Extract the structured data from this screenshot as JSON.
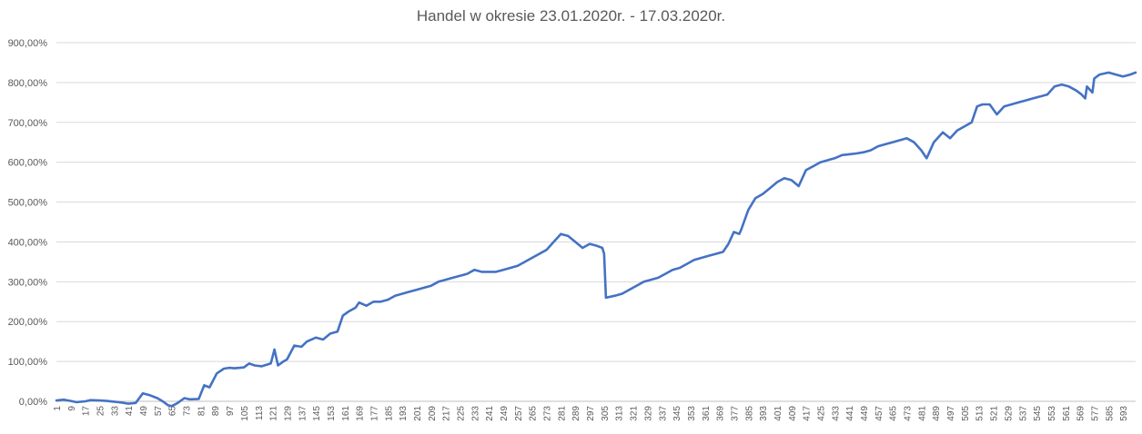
{
  "chart_data": {
    "type": "line",
    "title": "Handel w okresie 23.01.2020r. - 17.03.2020r.",
    "xlabel": "",
    "ylabel": "",
    "ylim": [
      0,
      900
    ],
    "y_ticks": [
      "0,00%",
      "100,00%",
      "200,00%",
      "300,00%",
      "400,00%",
      "500,00%",
      "600,00%",
      "700,00%",
      "800,00%",
      "900,00%"
    ],
    "y_tick_values": [
      0,
      100,
      200,
      300,
      400,
      500,
      600,
      700,
      800,
      900
    ],
    "x_range": [
      1,
      600
    ],
    "x_ticks": [
      "1",
      "9",
      "17",
      "25",
      "33",
      "41",
      "49",
      "57",
      "65",
      "73",
      "81",
      "89",
      "97",
      "105",
      "113",
      "121",
      "129",
      "137",
      "145",
      "153",
      "161",
      "169",
      "177",
      "185",
      "193",
      "201",
      "209",
      "217",
      "225",
      "233",
      "241",
      "249",
      "257",
      "265",
      "273",
      "281",
      "289",
      "297",
      "305",
      "313",
      "321",
      "329",
      "337",
      "345",
      "353",
      "361",
      "369",
      "377",
      "385",
      "393",
      "401",
      "409",
      "417",
      "425",
      "433",
      "441",
      "449",
      "457",
      "465",
      "473",
      "481",
      "489",
      "497",
      "505",
      "513",
      "521",
      "529",
      "537",
      "545",
      "553",
      "561",
      "569",
      "577",
      "585",
      "593"
    ],
    "grid": true,
    "legend": "none",
    "line_color": "#4472C4",
    "series": [
      {
        "x": [
          1,
          5,
          9,
          12,
          17,
          20,
          25,
          29,
          33,
          37,
          41,
          45,
          49,
          53,
          57,
          60,
          63,
          65,
          68,
          72,
          75,
          80,
          83,
          86,
          90,
          94,
          97,
          100,
          105,
          108,
          111,
          115,
          120,
          122,
          124,
          127,
          129,
          133,
          137,
          140,
          145,
          149,
          153,
          157,
          160,
          163,
          167,
          169,
          173,
          177,
          181,
          185,
          189,
          193,
          197,
          201,
          205,
          209,
          213,
          217,
          221,
          225,
          229,
          233,
          237,
          241,
          245,
          249,
          253,
          257,
          261,
          265,
          269,
          273,
          277,
          281,
          285,
          289,
          293,
          297,
          301,
          304,
          305,
          306,
          308,
          311,
          315,
          319,
          323,
          327,
          331,
          335,
          339,
          343,
          347,
          351,
          355,
          359,
          363,
          367,
          371,
          374,
          377,
          380,
          381,
          385,
          389,
          393,
          397,
          401,
          405,
          409,
          413,
          417,
          421,
          425,
          429,
          433,
          437,
          441,
          445,
          449,
          453,
          457,
          461,
          465,
          469,
          473,
          477,
          481,
          484,
          485,
          488,
          493,
          497,
          501,
          505,
          509,
          512,
          515,
          519,
          523,
          527,
          531,
          535,
          539,
          543,
          547,
          551,
          555,
          559,
          563,
          567,
          570,
          572,
          573,
          576,
          577,
          580,
          585,
          589,
          593,
          597,
          600
        ],
        "y": [
          2,
          4,
          1,
          -2,
          0,
          3,
          2,
          1,
          -1,
          -3,
          -6,
          -4,
          20,
          15,
          8,
          0,
          -10,
          -12,
          -5,
          8,
          5,
          6,
          40,
          35,
          70,
          82,
          84,
          83,
          85,
          95,
          90,
          88,
          95,
          130,
          90,
          100,
          105,
          140,
          137,
          150,
          160,
          155,
          170,
          175,
          215,
          225,
          235,
          248,
          240,
          250,
          250,
          255,
          265,
          270,
          275,
          280,
          285,
          290,
          300,
          305,
          310,
          315,
          320,
          330,
          325,
          325,
          325,
          330,
          335,
          340,
          350,
          360,
          370,
          380,
          400,
          420,
          415,
          400,
          385,
          395,
          390,
          385,
          370,
          260,
          262,
          265,
          270,
          280,
          290,
          300,
          305,
          310,
          320,
          330,
          335,
          345,
          355,
          360,
          365,
          370,
          375,
          395,
          425,
          420,
          430,
          480,
          510,
          520,
          535,
          550,
          560,
          555,
          540,
          580,
          590,
          600,
          605,
          610,
          618,
          620,
          622,
          625,
          630,
          640,
          645,
          650,
          655,
          660,
          650,
          630,
          610,
          620,
          650,
          675,
          660,
          680,
          690,
          700,
          740,
          745,
          745,
          720,
          740,
          745,
          750,
          755,
          760,
          765,
          770,
          790,
          795,
          790,
          780,
          770,
          760,
          790,
          775,
          810,
          820,
          825,
          820,
          815,
          820,
          825
        ]
      }
    ]
  }
}
